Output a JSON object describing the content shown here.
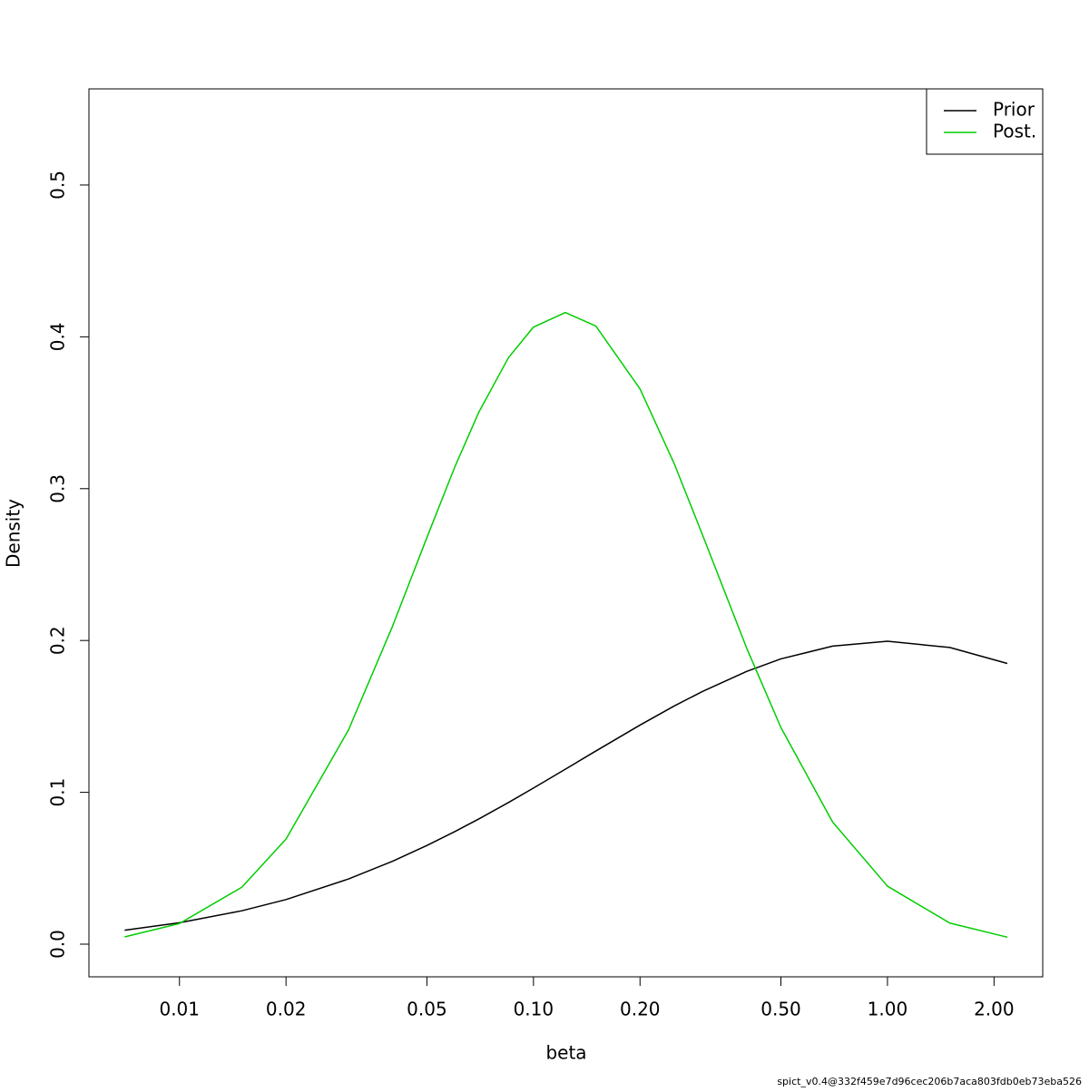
{
  "chart_data": {
    "type": "line",
    "x_label": "beta",
    "y_label": "Density",
    "footnote": "spict_v0.4@332f459e7d96cec206b7aca803fdb0eb73eba526",
    "x": [
      0.007,
      0.01,
      0.015,
      0.02,
      0.03,
      0.04,
      0.05,
      0.06,
      0.07,
      0.085,
      0.1,
      0.123,
      0.15,
      0.2,
      0.25,
      0.3,
      0.4,
      0.5,
      0.7,
      1,
      1.5,
      2.18
    ],
    "series": [
      {
        "name": "Prior",
        "color": "#000000",
        "values": [
          0.0092,
          0.0141,
          0.022,
          0.0294,
          0.0429,
          0.0546,
          0.065,
          0.0742,
          0.0824,
          0.0933,
          0.1028,
          0.1152,
          0.1272,
          0.1443,
          0.1569,
          0.1664,
          0.1796,
          0.1879,
          0.1963,
          0.1995,
          0.1954,
          0.1849
        ]
      },
      {
        "name": "Post.",
        "color": "#00cd00",
        "values": [
          0.0048,
          0.0136,
          0.0375,
          0.0692,
          0.1409,
          0.2095,
          0.2678,
          0.3145,
          0.3501,
          0.3863,
          0.4064,
          0.416,
          0.4071,
          0.3657,
          0.3163,
          0.2698,
          0.1951,
          0.1427,
          0.0804,
          0.0382,
          0.0139,
          0.0046
        ]
      }
    ],
    "log_x": true,
    "xlim": [
      0.00555,
      2.745
    ],
    "xticks": [
      0.01,
      0.02,
      0.05,
      {
        "value": 0.1,
        "label": "0.10"
      },
      {
        "value": 0.2,
        "label": "0.20"
      },
      {
        "value": 0.5,
        "label": "0.50"
      },
      {
        "value": 1,
        "label": "1.00"
      },
      {
        "value": 2,
        "label": "2.00"
      }
    ],
    "ylim": [
      -0.0215,
      0.5633
    ],
    "yticks": [
      {
        "value": 0,
        "label": "0.0"
      },
      0.1,
      0.2,
      0.3,
      0.4,
      0.5
    ],
    "legend": "topright"
  }
}
